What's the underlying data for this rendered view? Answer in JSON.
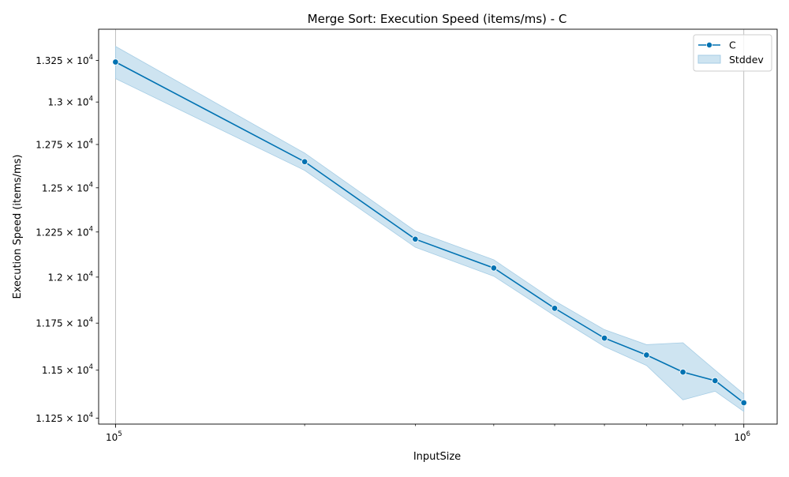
{
  "chart_data": {
    "type": "line",
    "title": "Merge Sort: Execution Speed (items/ms) - C",
    "xlabel": "InputSize",
    "ylabel": "Execution Speed (items/ms)",
    "x_scale": "log",
    "y_scale": "log",
    "xlim": [
      94000,
      1130000
    ],
    "ylim": [
      11220,
      13440
    ],
    "x_ticks": [
      {
        "value": 100000,
        "base": "10",
        "exp": "5"
      },
      {
        "value": 1000000,
        "base": "10",
        "exp": "6"
      }
    ],
    "x_minor_ticks": [
      200000,
      300000,
      400000,
      500000,
      600000,
      700000,
      800000,
      900000
    ],
    "y_ticks": [
      {
        "value": 11250,
        "mant": "1.125",
        "exp": "4"
      },
      {
        "value": 11500,
        "mant": "1.15",
        "exp": "4"
      },
      {
        "value": 11750,
        "mant": "1.175",
        "exp": "4"
      },
      {
        "value": 12000,
        "mant": "1.2",
        "exp": "4"
      },
      {
        "value": 12250,
        "mant": "1.225",
        "exp": "4"
      },
      {
        "value": 12500,
        "mant": "1.25",
        "exp": "4"
      },
      {
        "value": 12750,
        "mant": "1.275",
        "exp": "4"
      },
      {
        "value": 13000,
        "mant": "1.3",
        "exp": "4"
      },
      {
        "value": 13250,
        "mant": "1.325",
        "exp": "4"
      }
    ],
    "grid": "major x only",
    "legend_position": "top-right",
    "x": [
      100000,
      200000,
      300000,
      400000,
      500000,
      600000,
      700000,
      800000,
      900000,
      1000000
    ],
    "series": [
      {
        "name": "C",
        "color": "#0072b2",
        "values": [
          13240,
          12650,
          12210,
          12050,
          11830,
          11670,
          11580,
          11490,
          11445,
          11330
        ],
        "upper": [
          13335,
          12700,
          12255,
          12095,
          11870,
          11715,
          11635,
          11645,
          11500,
          11375
        ],
        "lower": [
          13140,
          12600,
          12165,
          12005,
          11790,
          11625,
          11525,
          11345,
          11390,
          11285
        ]
      }
    ],
    "band_name": "Stddev",
    "band_color": "#a6cde5"
  }
}
